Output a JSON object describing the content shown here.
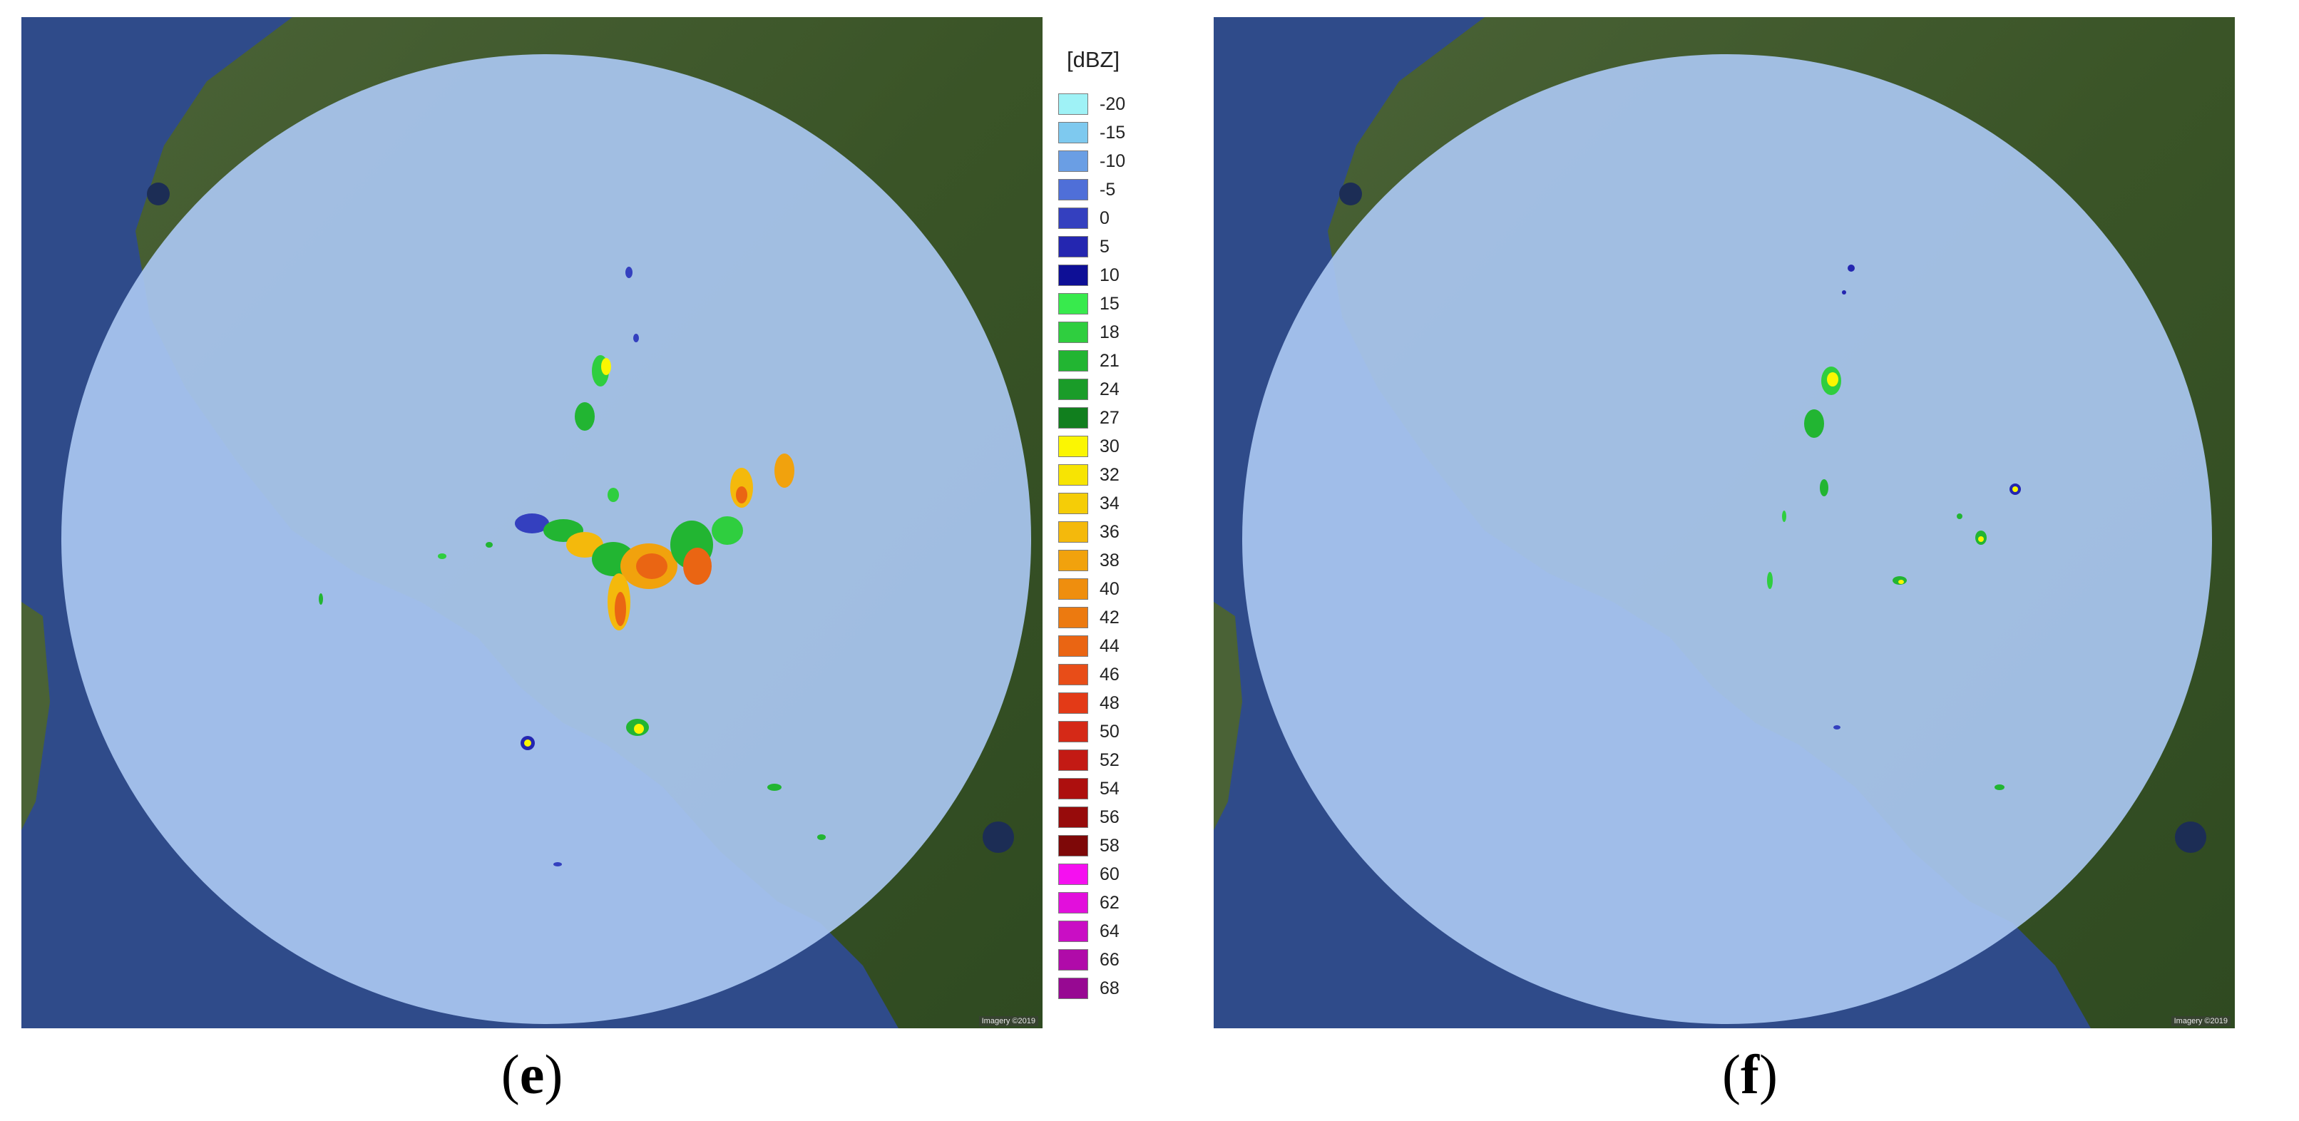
{
  "legend": {
    "unit": "[dBZ]",
    "items": [
      {
        "value": "-20",
        "color": "#9ff2f6"
      },
      {
        "value": "-15",
        "color": "#7ec9ef"
      },
      {
        "value": "-10",
        "color": "#6a9ee4"
      },
      {
        "value": "-5",
        "color": "#4f6fd8"
      },
      {
        "value": "0",
        "color": "#3440bf"
      },
      {
        "value": "5",
        "color": "#2426b0"
      },
      {
        "value": "10",
        "color": "#0e0f96"
      },
      {
        "value": "15",
        "color": "#38ea4d"
      },
      {
        "value": "18",
        "color": "#2fce3f"
      },
      {
        "value": "21",
        "color": "#22b532"
      },
      {
        "value": "24",
        "color": "#1a9c29"
      },
      {
        "value": "27",
        "color": "#117f1e"
      },
      {
        "value": "30",
        "color": "#fbf602"
      },
      {
        "value": "32",
        "color": "#f7e403"
      },
      {
        "value": "34",
        "color": "#f5cd07"
      },
      {
        "value": "36",
        "color": "#f4b90c"
      },
      {
        "value": "38",
        "color": "#f1a20d"
      },
      {
        "value": "40",
        "color": "#ef8e0e"
      },
      {
        "value": "42",
        "color": "#ec7a10"
      },
      {
        "value": "44",
        "color": "#ea6513"
      },
      {
        "value": "46",
        "color": "#e84d18"
      },
      {
        "value": "48",
        "color": "#e33a17"
      },
      {
        "value": "50",
        "color": "#d52917"
      },
      {
        "value": "52",
        "color": "#c31a14"
      },
      {
        "value": "54",
        "color": "#ad0f0e"
      },
      {
        "value": "56",
        "color": "#970b0b"
      },
      {
        "value": "58",
        "color": "#7e0808"
      },
      {
        "value": "60",
        "color": "#f510f0"
      },
      {
        "value": "62",
        "color": "#e20fdc"
      },
      {
        "value": "64",
        "color": "#c90ec4"
      },
      {
        "value": "66",
        "color": "#b00ba9"
      },
      {
        "value": "68",
        "color": "#970992"
      }
    ]
  },
  "panels": {
    "e": {
      "label": "e",
      "attribution": "Imagery ©2019"
    },
    "f": {
      "label": "f",
      "attribution": "Imagery ©2019"
    }
  },
  "colors": {
    "sea": "#2f4b8a",
    "land": "#3d5a2a",
    "radar_disc": "#a9c6f0"
  }
}
